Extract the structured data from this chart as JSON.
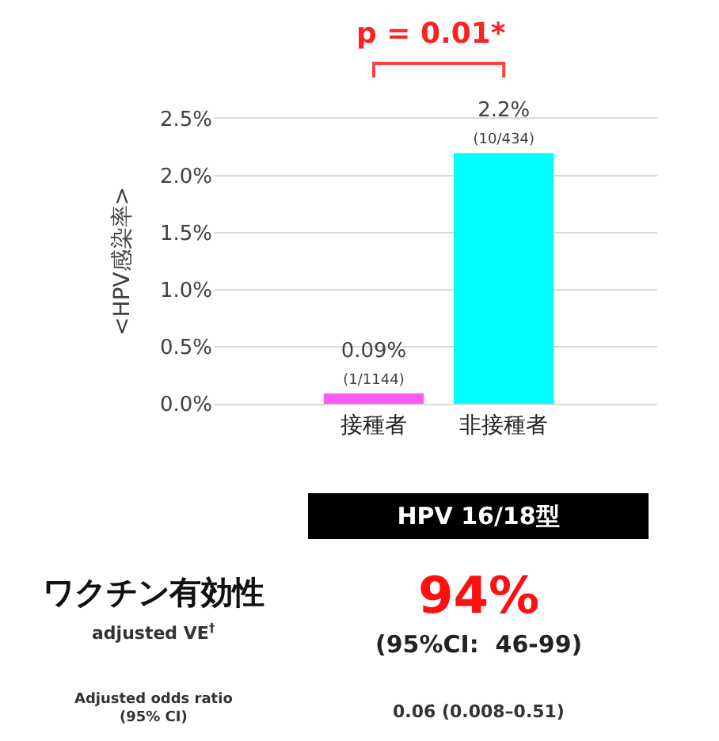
{
  "chart_data": {
    "type": "bar",
    "categories": [
      "接種者",
      "非接種者"
    ],
    "values": [
      0.09,
      2.2
    ],
    "colors": [
      "#f75cf5",
      "#00ffff"
    ],
    "value_labels": [
      "0.09%\n(1/1144)",
      "2.2%\n(10/434)"
    ],
    "ylabel": "<HPV感染率>",
    "ylim": [
      0,
      2.5
    ],
    "yticks": [
      {
        "value": 0,
        "label": "0.0%"
      },
      {
        "value": 0.5,
        "label": "0.5%"
      },
      {
        "value": 1,
        "label": "1.0%"
      },
      {
        "value": 1.5,
        "label": "1.5%"
      },
      {
        "value": 2,
        "label": "2.0%"
      },
      {
        "value": 2.5,
        "label": "2.5%"
      }
    ],
    "grid": "y",
    "annotations": [
      "p = 0.01*",
      "HPV 16/18型",
      "ワクチン有効性",
      "adjusted VE$^{†}$",
      "94%",
      "(95%CI:  46-99)",
      "Adjusted odds ratio\n(95% CI)",
      "0.06 (0.008–0.51)"
    ]
  }
}
